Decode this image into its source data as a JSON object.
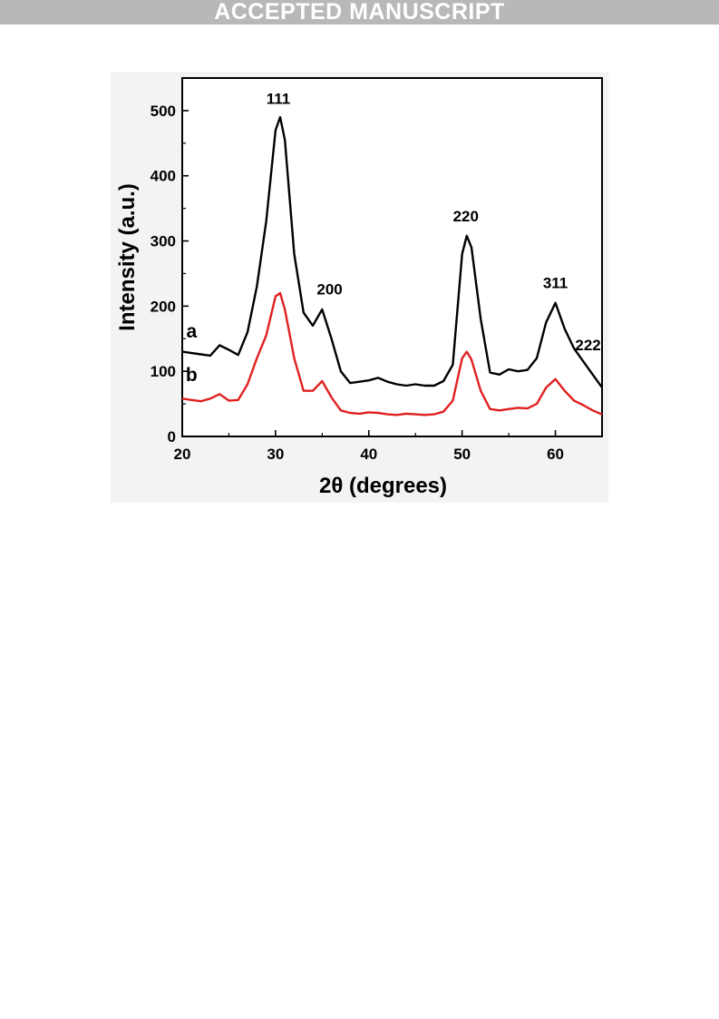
{
  "header": {
    "banner_text": "ACCEPTED MANUSCRIPT"
  },
  "chart_data": {
    "type": "line",
    "xlabel": "2θ (degrees)",
    "ylabel": "Intensity (a.u.)",
    "xlim": [
      20,
      65
    ],
    "ylim": [
      0,
      550
    ],
    "xticks": [
      20,
      30,
      40,
      50,
      60
    ],
    "yticks": [
      0,
      100,
      200,
      300,
      400,
      500
    ],
    "grid": false,
    "series": [
      {
        "name": "a",
        "color": "#000000",
        "points": [
          [
            20,
            130
          ],
          [
            21,
            128
          ],
          [
            22,
            126
          ],
          [
            23,
            124
          ],
          [
            24,
            140
          ],
          [
            25,
            133
          ],
          [
            26,
            125
          ],
          [
            27,
            160
          ],
          [
            28,
            230
          ],
          [
            29,
            330
          ],
          [
            30,
            470
          ],
          [
            30.5,
            490
          ],
          [
            31,
            455
          ],
          [
            32,
            280
          ],
          [
            33,
            190
          ],
          [
            34,
            170
          ],
          [
            35,
            195
          ],
          [
            36,
            150
          ],
          [
            37,
            100
          ],
          [
            38,
            82
          ],
          [
            39,
            84
          ],
          [
            40,
            86
          ],
          [
            41,
            90
          ],
          [
            42,
            84
          ],
          [
            43,
            80
          ],
          [
            44,
            78
          ],
          [
            45,
            80
          ],
          [
            46,
            78
          ],
          [
            47,
            78
          ],
          [
            48,
            85
          ],
          [
            49,
            110
          ],
          [
            50,
            280
          ],
          [
            50.5,
            308
          ],
          [
            51,
            290
          ],
          [
            52,
            180
          ],
          [
            53,
            98
          ],
          [
            54,
            95
          ],
          [
            55,
            103
          ],
          [
            56,
            100
          ],
          [
            57,
            102
          ],
          [
            58,
            120
          ],
          [
            59,
            175
          ],
          [
            60,
            205
          ],
          [
            61,
            165
          ],
          [
            62,
            135
          ],
          [
            63,
            115
          ],
          [
            64,
            95
          ],
          [
            65,
            75
          ]
        ]
      },
      {
        "name": "b",
        "color": "#e02020",
        "points": [
          [
            20,
            58
          ],
          [
            21,
            56
          ],
          [
            22,
            54
          ],
          [
            23,
            58
          ],
          [
            24,
            65
          ],
          [
            25,
            55
          ],
          [
            26,
            56
          ],
          [
            27,
            80
          ],
          [
            28,
            120
          ],
          [
            29,
            155
          ],
          [
            30,
            215
          ],
          [
            30.5,
            220
          ],
          [
            31,
            195
          ],
          [
            32,
            120
          ],
          [
            33,
            70
          ],
          [
            34,
            70
          ],
          [
            35,
            85
          ],
          [
            36,
            60
          ],
          [
            37,
            40
          ],
          [
            38,
            36
          ],
          [
            39,
            35
          ],
          [
            40,
            37
          ],
          [
            41,
            36
          ],
          [
            42,
            34
          ],
          [
            43,
            33
          ],
          [
            44,
            35
          ],
          [
            45,
            34
          ],
          [
            46,
            33
          ],
          [
            47,
            34
          ],
          [
            48,
            38
          ],
          [
            49,
            55
          ],
          [
            50,
            120
          ],
          [
            50.5,
            130
          ],
          [
            51,
            118
          ],
          [
            52,
            70
          ],
          [
            53,
            42
          ],
          [
            54,
            40
          ],
          [
            55,
            42
          ],
          [
            56,
            44
          ],
          [
            57,
            43
          ],
          [
            58,
            50
          ],
          [
            59,
            75
          ],
          [
            60,
            88
          ],
          [
            61,
            70
          ],
          [
            62,
            55
          ],
          [
            63,
            48
          ],
          [
            64,
            40
          ],
          [
            65,
            34
          ]
        ]
      }
    ],
    "series_labels": [
      {
        "text": "a",
        "x": 21.0,
        "y": 152
      },
      {
        "text": "b",
        "x": 21.0,
        "y": 85
      }
    ],
    "annotations": [
      {
        "text": "111",
        "x": 30.3,
        "y": 510
      },
      {
        "text": "200",
        "x": 35.8,
        "y": 218
      },
      {
        "text": "220",
        "x": 50.4,
        "y": 330
      },
      {
        "text": "311",
        "x": 60.0,
        "y": 228
      },
      {
        "text": "222",
        "x": 63.5,
        "y": 132
      }
    ]
  }
}
